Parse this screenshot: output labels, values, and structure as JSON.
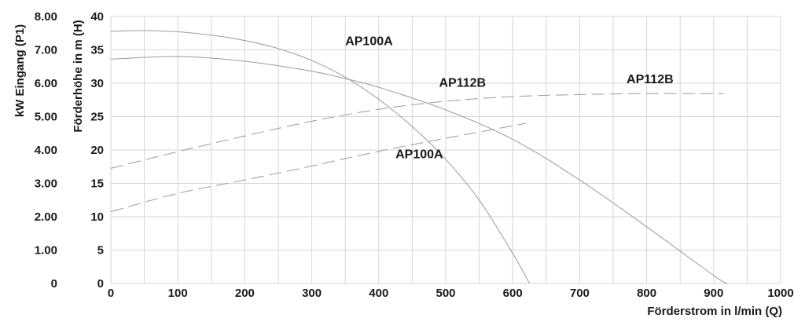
{
  "chart_data": {
    "type": "line",
    "title": "",
    "xlabel": "Förderstrom in l/min (Q)",
    "ylabel_left": "kW Eingang (P1)",
    "ylabel_head": "Förderhöhe in m (H)",
    "xlim": [
      0,
      1000
    ],
    "ylim_head": [
      0,
      40
    ],
    "ylim_power": [
      0,
      8
    ],
    "x_ticks": [
      "0",
      "100",
      "200",
      "300",
      "400",
      "500",
      "600",
      "700",
      "800",
      "900",
      "1000"
    ],
    "y_head_ticks": [
      "0",
      "5",
      "10",
      "15",
      "20",
      "25",
      "30",
      "35",
      "40"
    ],
    "y_power_ticks": [
      "0",
      "1.00",
      "2.00",
      "3.00",
      "4.00",
      "5.00",
      "6.00",
      "7.00",
      "8.00"
    ],
    "grid": true,
    "series": [
      {
        "name": "AP100A",
        "kind": "head",
        "axis": "head",
        "style": "solid",
        "color": "#9a9a9a",
        "x": [
          0,
          50,
          100,
          150,
          200,
          250,
          300,
          350,
          400,
          450,
          500,
          550,
          600,
          625
        ],
        "y": [
          37.8,
          37.9,
          37.7,
          37.2,
          36.4,
          35.2,
          33.4,
          30.9,
          27.6,
          23.5,
          18.6,
          12.5,
          4.5,
          0
        ]
      },
      {
        "name": "AP112B",
        "kind": "head",
        "axis": "head",
        "style": "solid",
        "color": "#9a9a9a",
        "x": [
          0,
          100,
          200,
          300,
          350,
          400,
          500,
          600,
          700,
          800,
          900,
          920
        ],
        "y": [
          33.6,
          34.0,
          33.3,
          31.8,
          30.7,
          29.4,
          26.0,
          21.6,
          15.5,
          8.5,
          1.2,
          0
        ]
      },
      {
        "name": "AP112B",
        "kind": "power",
        "axis": "power",
        "style": "dashed",
        "color": "#9a9a9a",
        "x": [
          0,
          100,
          200,
          300,
          400,
          500,
          600,
          700,
          800,
          900,
          915
        ],
        "y": [
          3.45,
          3.95,
          4.42,
          4.86,
          5.22,
          5.46,
          5.6,
          5.66,
          5.69,
          5.69,
          5.68
        ]
      },
      {
        "name": "AP100A",
        "kind": "power",
        "axis": "power",
        "style": "dashed",
        "color": "#9a9a9a",
        "x": [
          0,
          100,
          200,
          300,
          400,
          500,
          620
        ],
        "y": [
          2.15,
          2.7,
          3.1,
          3.52,
          3.96,
          4.35,
          4.8
        ]
      }
    ],
    "labels": [
      {
        "text": "AP100A",
        "x": 350,
        "y": 35.7
      },
      {
        "text": "AP112B",
        "x": 490,
        "y": 29.5
      },
      {
        "text": "AP112B",
        "x": 770,
        "y": 6.0
      },
      {
        "text": "AP100A",
        "x": 425,
        "y": 3.75
      }
    ]
  }
}
